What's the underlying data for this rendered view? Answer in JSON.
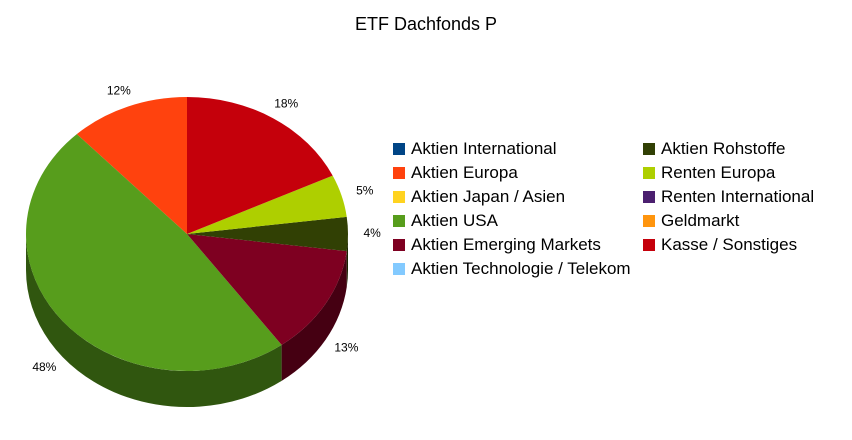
{
  "chart_data": {
    "type": "pie",
    "title": "ETF Dachfonds P",
    "series": [
      {
        "name": "Aktien International",
        "color": "#004586",
        "value": 0,
        "value_label": null
      },
      {
        "name": "Aktien Europa",
        "color": "#ff420e",
        "value": 12,
        "value_label": "12%"
      },
      {
        "name": "Aktien Japan / Asien",
        "color": "#ffd320",
        "value": 0,
        "value_label": null
      },
      {
        "name": "Aktien USA",
        "color": "#579d1c",
        "value": 48,
        "value_label": "48%"
      },
      {
        "name": "Aktien Emerging Markets",
        "color": "#7e0021",
        "value": 13,
        "value_label": "13%"
      },
      {
        "name": "Aktien Technologie / Telekom",
        "color": "#83caff",
        "value": 0,
        "value_label": null
      },
      {
        "name": "Aktien Rohstoffe",
        "color": "#314004",
        "value": 4,
        "value_label": "4%"
      },
      {
        "name": "Renten Europa",
        "color": "#aecf00",
        "value": 5,
        "value_label": "5%"
      },
      {
        "name": "Renten International",
        "color": "#4b1f6f",
        "value": 0,
        "value_label": null
      },
      {
        "name": "Geldmarkt",
        "color": "#ff950e",
        "value": 0,
        "value_label": null
      },
      {
        "name": "Kasse / Sonstiges",
        "color": "#c5000b",
        "value": 18,
        "value_label": "18%"
      }
    ],
    "legend": "right"
  }
}
